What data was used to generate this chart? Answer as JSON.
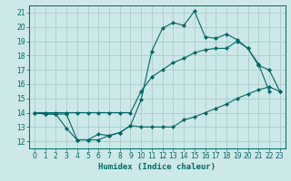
{
  "title": "",
  "xlabel": "Humidex (Indice chaleur)",
  "ylabel": "",
  "xlim": [
    -0.5,
    23.5
  ],
  "ylim": [
    11.5,
    21.5
  ],
  "xticks": [
    0,
    1,
    2,
    3,
    4,
    5,
    6,
    7,
    8,
    9,
    10,
    11,
    12,
    13,
    14,
    15,
    16,
    17,
    18,
    19,
    20,
    21,
    22,
    23
  ],
  "yticks": [
    12,
    13,
    14,
    15,
    16,
    17,
    18,
    19,
    20,
    21
  ],
  "bg_color": "#cce8e8",
  "grid_color": "#aacccc",
  "line_color": "#006666",
  "line1_x": [
    0,
    1,
    2,
    3,
    4,
    5,
    6,
    7,
    8,
    9,
    10,
    11,
    12,
    13,
    14,
    15,
    16,
    17,
    18,
    19,
    20,
    21,
    22,
    23
  ],
  "line1_y": [
    14,
    13.9,
    13.9,
    12.9,
    12.1,
    12.1,
    12.5,
    12.4,
    12.6,
    13.1,
    13.0,
    13.0,
    13.0,
    13.0,
    13.5,
    13.7,
    14.0,
    14.3,
    14.6,
    15.0,
    15.3,
    15.6,
    15.8,
    15.5
  ],
  "line2_x": [
    0,
    1,
    2,
    3,
    4,
    5,
    6,
    7,
    8,
    9,
    10,
    11,
    12,
    13,
    14,
    15,
    16,
    17,
    18,
    19,
    20,
    21,
    22,
    23
  ],
  "line2_y": [
    14,
    14,
    14,
    14,
    14,
    14,
    14,
    14,
    14,
    14,
    15.5,
    16.5,
    17.0,
    17.5,
    17.8,
    18.2,
    18.4,
    18.5,
    18.5,
    19.0,
    18.5,
    17.3,
    17.0,
    15.5
  ],
  "line3_x": [
    0,
    1,
    2,
    3,
    4,
    5,
    6,
    7,
    8,
    9,
    10,
    11,
    12,
    13,
    14,
    15,
    16,
    17,
    18,
    19,
    20,
    21,
    22
  ],
  "line3_y": [
    14,
    13.9,
    13.9,
    13.9,
    12.1,
    12.1,
    12.1,
    12.4,
    12.6,
    13.1,
    14.9,
    18.3,
    19.9,
    20.3,
    20.1,
    21.1,
    19.3,
    19.2,
    19.5,
    19.1,
    18.5,
    17.4,
    15.5
  ]
}
